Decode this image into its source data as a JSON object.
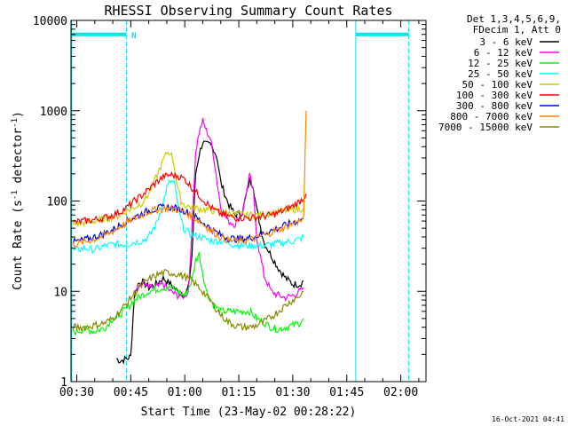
{
  "chart_data": {
    "type": "line",
    "title": "RHESSI Observing Summary Count Rates",
    "xlabel": "Start Time (23-May-02 00:28:22)",
    "ylabel": "Count Rate (s",
    "ylabel_sup": "-1",
    "ylabel_end": " detector",
    "ylabel_end_sup": "-1",
    "ylabel_close": ")",
    "x_unit": "minutes after 00:00 UT",
    "xlim": [
      28.4,
      127.0
    ],
    "ylim": [
      1,
      10000
    ],
    "yscale": "log",
    "x_ticks": [
      {
        "value": 30,
        "label": "00:30"
      },
      {
        "value": 45,
        "label": "00:45"
      },
      {
        "value": 60,
        "label": "01:00"
      },
      {
        "value": 75,
        "label": "01:15"
      },
      {
        "value": 90,
        "label": "01:30"
      },
      {
        "value": 105,
        "label": "01:45"
      },
      {
        "value": 120,
        "label": "02:00"
      }
    ],
    "y_ticks": [
      {
        "value": 1,
        "label": "1"
      },
      {
        "value": 10,
        "label": "10"
      },
      {
        "value": 100,
        "label": "100"
      },
      {
        "value": 1000,
        "label": "1000"
      },
      {
        "value": 10000,
        "label": "10000"
      }
    ],
    "legend_header": [
      "Det 1,3,4,5,6,9,",
      "FDecim 1, Att 0"
    ],
    "series": [
      {
        "name": "3 - 6 keV",
        "color": "#000000",
        "points": [
          [
            41,
            1.8
          ],
          [
            42,
            1.7
          ],
          [
            44,
            1.8
          ],
          [
            45,
            1.9
          ],
          [
            46,
            9
          ],
          [
            47,
            12
          ],
          [
            48,
            13
          ],
          [
            50,
            11
          ],
          [
            52,
            12
          ],
          [
            54,
            14
          ],
          [
            56,
            12
          ],
          [
            58,
            10
          ],
          [
            60,
            9
          ],
          [
            61,
            11
          ],
          [
            62,
            25
          ],
          [
            63,
            200
          ],
          [
            64,
            330
          ],
          [
            65,
            450
          ],
          [
            66,
            420
          ],
          [
            67,
            420
          ],
          [
            68,
            380
          ],
          [
            69,
            300
          ],
          [
            70,
            160
          ],
          [
            72,
            95
          ],
          [
            74,
            70
          ],
          [
            76,
            75
          ],
          [
            78,
            170
          ],
          [
            79,
            150
          ],
          [
            80,
            80
          ],
          [
            82,
            35
          ],
          [
            84,
            25
          ],
          [
            86,
            18
          ],
          [
            88,
            14
          ],
          [
            90,
            12
          ],
          [
            92,
            12
          ],
          [
            93,
            13
          ]
        ]
      },
      {
        "name": "6 - 12 keV",
        "color": "#ff00ff",
        "points": [
          [
            46,
            10
          ],
          [
            48,
            12
          ],
          [
            50,
            11
          ],
          [
            52,
            11
          ],
          [
            54,
            12
          ],
          [
            56,
            10
          ],
          [
            58,
            9
          ],
          [
            60,
            9
          ],
          [
            61,
            10
          ],
          [
            62,
            50
          ],
          [
            63,
            350
          ],
          [
            64,
            580
          ],
          [
            65,
            770
          ],
          [
            66,
            600
          ],
          [
            67,
            500
          ],
          [
            68,
            320
          ],
          [
            69,
            160
          ],
          [
            70,
            85
          ],
          [
            72,
            60
          ],
          [
            74,
            55
          ],
          [
            76,
            75
          ],
          [
            78,
            190
          ],
          [
            79,
            130
          ],
          [
            80,
            40
          ],
          [
            82,
            15
          ],
          [
            84,
            10
          ],
          [
            86,
            9
          ],
          [
            88,
            8.5
          ],
          [
            90,
            9
          ],
          [
            92,
            10
          ],
          [
            93,
            11
          ]
        ]
      },
      {
        "name": "12 - 25 keV",
        "color": "#00ff00",
        "points": [
          [
            29,
            3.5
          ],
          [
            32,
            3.8
          ],
          [
            35,
            3.6
          ],
          [
            38,
            4
          ],
          [
            40,
            5
          ],
          [
            42,
            5.5
          ],
          [
            44,
            6.5
          ],
          [
            46,
            8
          ],
          [
            48,
            9
          ],
          [
            50,
            10
          ],
          [
            52,
            10.5
          ],
          [
            54,
            11
          ],
          [
            56,
            11
          ],
          [
            58,
            10
          ],
          [
            60,
            9
          ],
          [
            62,
            13
          ],
          [
            63,
            22
          ],
          [
            64,
            26
          ],
          [
            65,
            16
          ],
          [
            66,
            10
          ],
          [
            68,
            7
          ],
          [
            70,
            6
          ],
          [
            72,
            6
          ],
          [
            74,
            6
          ],
          [
            76,
            6
          ],
          [
            78,
            6
          ],
          [
            80,
            5
          ],
          [
            82,
            4.5
          ],
          [
            84,
            4
          ],
          [
            86,
            3.8
          ],
          [
            88,
            4
          ],
          [
            90,
            4.2
          ],
          [
            92,
            4.5
          ],
          [
            93,
            5
          ]
        ]
      },
      {
        "name": "25 - 50 keV",
        "color": "#00ffff",
        "points": [
          [
            29,
            28
          ],
          [
            32,
            30
          ],
          [
            35,
            29
          ],
          [
            38,
            32
          ],
          [
            40,
            33
          ],
          [
            42,
            33
          ],
          [
            44,
            33
          ],
          [
            46,
            35
          ],
          [
            48,
            36
          ],
          [
            50,
            40
          ],
          [
            52,
            55
          ],
          [
            54,
            95
          ],
          [
            55,
            140
          ],
          [
            56,
            165
          ],
          [
            57,
            160
          ],
          [
            58,
            95
          ],
          [
            59,
            60
          ],
          [
            60,
            48
          ],
          [
            62,
            42
          ],
          [
            64,
            40
          ],
          [
            66,
            38
          ],
          [
            68,
            36
          ],
          [
            70,
            36
          ],
          [
            72,
            34
          ],
          [
            74,
            33
          ],
          [
            76,
            32
          ],
          [
            78,
            32
          ],
          [
            80,
            32
          ],
          [
            82,
            32
          ],
          [
            84,
            33
          ],
          [
            86,
            34
          ],
          [
            88,
            35
          ],
          [
            90,
            36
          ],
          [
            92,
            38
          ],
          [
            93,
            40
          ]
        ]
      },
      {
        "name": "50 - 100 keV",
        "color": "#cccc00",
        "points": [
          [
            29,
            55
          ],
          [
            32,
            58
          ],
          [
            35,
            60
          ],
          [
            38,
            64
          ],
          [
            40,
            66
          ],
          [
            42,
            70
          ],
          [
            44,
            78
          ],
          [
            46,
            85
          ],
          [
            48,
            95
          ],
          [
            50,
            120
          ],
          [
            52,
            180
          ],
          [
            54,
            280
          ],
          [
            55,
            340
          ],
          [
            56,
            350
          ],
          [
            57,
            260
          ],
          [
            58,
            140
          ],
          [
            59,
            100
          ],
          [
            60,
            90
          ],
          [
            62,
            85
          ],
          [
            64,
            82
          ],
          [
            66,
            80
          ],
          [
            68,
            78
          ],
          [
            70,
            76
          ],
          [
            72,
            74
          ],
          [
            74,
            72
          ],
          [
            76,
            70
          ],
          [
            78,
            70
          ],
          [
            80,
            70
          ],
          [
            82,
            72
          ],
          [
            84,
            74
          ],
          [
            86,
            76
          ],
          [
            88,
            78
          ],
          [
            90,
            80
          ],
          [
            92,
            82
          ],
          [
            93,
            84
          ]
        ]
      },
      {
        "name": "100 - 300 keV",
        "color": "#ff0000",
        "points": [
          [
            29,
            58
          ],
          [
            32,
            60
          ],
          [
            35,
            62
          ],
          [
            38,
            66
          ],
          [
            40,
            70
          ],
          [
            42,
            76
          ],
          [
            44,
            85
          ],
          [
            46,
            100
          ],
          [
            48,
            115
          ],
          [
            50,
            135
          ],
          [
            52,
            160
          ],
          [
            54,
            185
          ],
          [
            56,
            195
          ],
          [
            58,
            190
          ],
          [
            60,
            175
          ],
          [
            62,
            140
          ],
          [
            64,
            115
          ],
          [
            66,
            95
          ],
          [
            68,
            80
          ],
          [
            70,
            72
          ],
          [
            72,
            68
          ],
          [
            74,
            66
          ],
          [
            76,
            65
          ],
          [
            78,
            65
          ],
          [
            80,
            66
          ],
          [
            82,
            68
          ],
          [
            84,
            70
          ],
          [
            86,
            74
          ],
          [
            88,
            80
          ],
          [
            90,
            88
          ],
          [
            92,
            100
          ],
          [
            93,
            110
          ],
          [
            93.7,
            120
          ]
        ]
      },
      {
        "name": "300 - 800 keV",
        "color": "#0000ff",
        "points": [
          [
            29,
            35
          ],
          [
            32,
            37
          ],
          [
            35,
            40
          ],
          [
            38,
            44
          ],
          [
            40,
            48
          ],
          [
            42,
            54
          ],
          [
            44,
            60
          ],
          [
            46,
            66
          ],
          [
            48,
            72
          ],
          [
            50,
            78
          ],
          [
            52,
            82
          ],
          [
            54,
            85
          ],
          [
            56,
            85
          ],
          [
            58,
            82
          ],
          [
            60,
            78
          ],
          [
            62,
            70
          ],
          [
            64,
            62
          ],
          [
            66,
            54
          ],
          [
            68,
            47
          ],
          [
            70,
            42
          ],
          [
            72,
            39
          ],
          [
            74,
            38
          ],
          [
            76,
            38
          ],
          [
            78,
            39
          ],
          [
            80,
            41
          ],
          [
            82,
            44
          ],
          [
            84,
            47
          ],
          [
            86,
            50
          ],
          [
            88,
            54
          ],
          [
            90,
            58
          ],
          [
            92,
            62
          ],
          [
            93,
            64
          ]
        ]
      },
      {
        "name": "800 - 7000 keV",
        "color": "#ff8800",
        "points": [
          [
            29,
            33
          ],
          [
            32,
            35
          ],
          [
            35,
            38
          ],
          [
            38,
            42
          ],
          [
            40,
            46
          ],
          [
            42,
            52
          ],
          [
            44,
            58
          ],
          [
            46,
            64
          ],
          [
            48,
            70
          ],
          [
            50,
            76
          ],
          [
            52,
            80
          ],
          [
            54,
            83
          ],
          [
            56,
            83
          ],
          [
            58,
            80
          ],
          [
            60,
            75
          ],
          [
            62,
            68
          ],
          [
            64,
            60
          ],
          [
            66,
            52
          ],
          [
            68,
            45
          ],
          [
            70,
            40
          ],
          [
            72,
            37
          ],
          [
            74,
            36
          ],
          [
            76,
            36
          ],
          [
            78,
            37
          ],
          [
            80,
            39
          ],
          [
            82,
            42
          ],
          [
            84,
            45
          ],
          [
            86,
            48
          ],
          [
            88,
            52
          ],
          [
            90,
            56
          ],
          [
            92,
            60
          ],
          [
            93,
            62
          ],
          [
            93.7,
            1000
          ]
        ]
      },
      {
        "name": "7000 - 15000 keV",
        "color": "#888800",
        "points": [
          [
            29,
            4
          ],
          [
            32,
            4
          ],
          [
            35,
            4.2
          ],
          [
            38,
            4.5
          ],
          [
            40,
            5
          ],
          [
            42,
            6
          ],
          [
            44,
            7.5
          ],
          [
            46,
            9.5
          ],
          [
            48,
            11.5
          ],
          [
            50,
            13.5
          ],
          [
            52,
            15
          ],
          [
            54,
            16
          ],
          [
            56,
            16
          ],
          [
            58,
            15.5
          ],
          [
            60,
            14.5
          ],
          [
            62,
            13
          ],
          [
            64,
            11
          ],
          [
            66,
            9
          ],
          [
            68,
            7
          ],
          [
            70,
            5.5
          ],
          [
            72,
            4.6
          ],
          [
            74,
            4.2
          ],
          [
            76,
            4
          ],
          [
            78,
            4
          ],
          [
            80,
            4.2
          ],
          [
            82,
            4.6
          ],
          [
            84,
            5.2
          ],
          [
            86,
            6
          ],
          [
            88,
            7
          ],
          [
            90,
            8
          ],
          [
            92,
            9
          ],
          [
            93,
            10
          ]
        ]
      }
    ],
    "flags": [
      {
        "label": "N",
        "x": 45.2
      }
    ],
    "flag_segments": [
      [
        28.4,
        43.8
      ],
      [
        107.5,
        122.2
      ]
    ],
    "flag_level": 7000,
    "vertical_lines": [
      {
        "x": 28.6,
        "style": "solid"
      },
      {
        "x": 43.8,
        "style": "dashed"
      },
      {
        "x": 107.5,
        "style": "solid"
      },
      {
        "x": 122.2,
        "style": "dashed"
      }
    ]
  },
  "footer": {
    "timestamp": "16-Oct-2021 04:41"
  }
}
